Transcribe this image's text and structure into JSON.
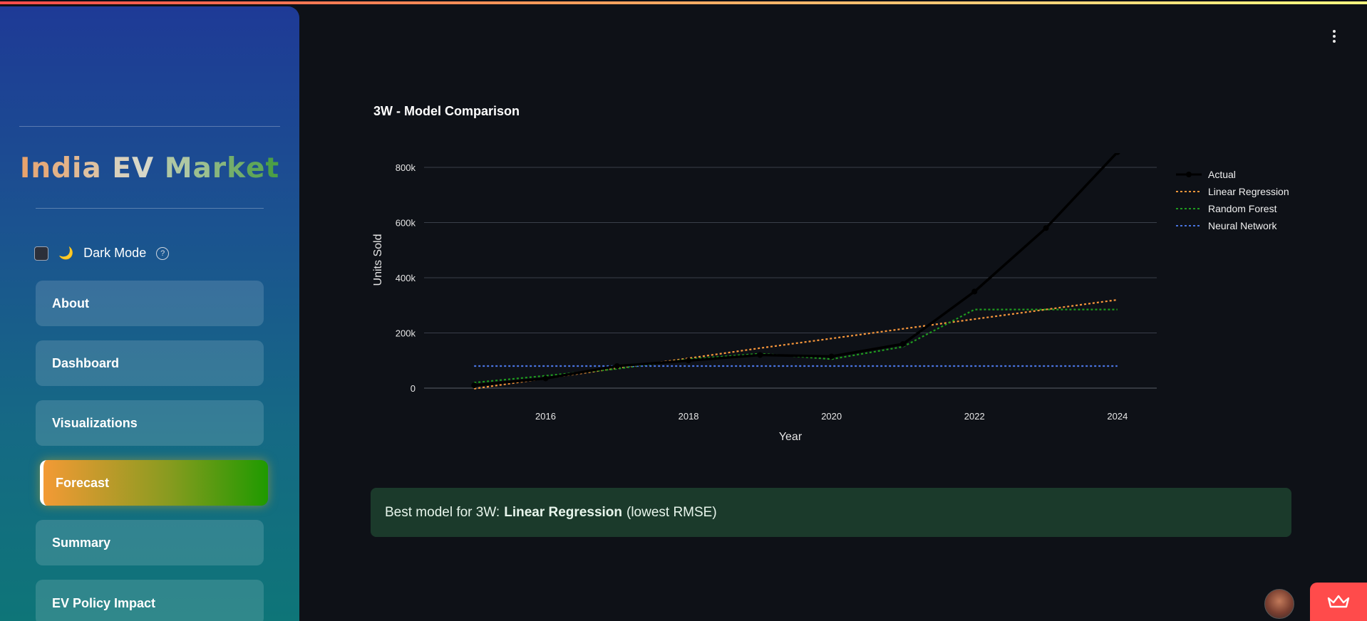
{
  "sidebar": {
    "title": "India EV Market",
    "dark_mode_label": "Dark Mode",
    "dark_mode_help": "?",
    "nav": [
      {
        "label": "About",
        "active": false
      },
      {
        "label": "Dashboard",
        "active": false
      },
      {
        "label": "Visualizations",
        "active": false
      },
      {
        "label": "Forecast",
        "active": true
      },
      {
        "label": "Summary",
        "active": false
      },
      {
        "label": "EV Policy Impact",
        "active": false
      }
    ]
  },
  "main": {
    "info": {
      "prefix": "Best model for 3W:",
      "model": "Linear Regression",
      "suffix": "(lowest RMSE)"
    }
  },
  "chart_data": {
    "type": "line",
    "title": "3W - Model Comparison",
    "xlabel": "Year",
    "ylabel": "Units Sold",
    "x": [
      2015,
      2016,
      2017,
      2018,
      2019,
      2020,
      2021,
      2022,
      2023,
      2024
    ],
    "x_ticks": [
      "2016",
      "2018",
      "2020",
      "2022",
      "2024"
    ],
    "y_ticks": [
      "0",
      "200k",
      "400k",
      "600k",
      "800k"
    ],
    "xlim": [
      2014.3,
      2024.55
    ],
    "ylim": [
      0,
      800000
    ],
    "grid": true,
    "legend_position": "top-right",
    "series": [
      {
        "name": "Actual",
        "color": "#000000",
        "style": "solid-markers",
        "values": [
          10000,
          35000,
          80000,
          100000,
          120000,
          115000,
          160000,
          350000,
          580000,
          855000
        ]
      },
      {
        "name": "Linear Regression",
        "color": "#f7963b",
        "style": "dotted",
        "values": [
          -2000,
          35000,
          72000,
          108000,
          145000,
          180000,
          215000,
          250000,
          285000,
          320000
        ]
      },
      {
        "name": "Random Forest",
        "color": "#1f9a1f",
        "style": "dotted",
        "values": [
          20000,
          45000,
          70000,
          105000,
          125000,
          105000,
          150000,
          285000,
          285000,
          285000
        ]
      },
      {
        "name": "Neural Network",
        "color": "#4a74e0",
        "style": "dotted",
        "values": [
          80000,
          80000,
          80000,
          80000,
          80000,
          80000,
          80000,
          80000,
          80000,
          80000
        ]
      }
    ]
  }
}
